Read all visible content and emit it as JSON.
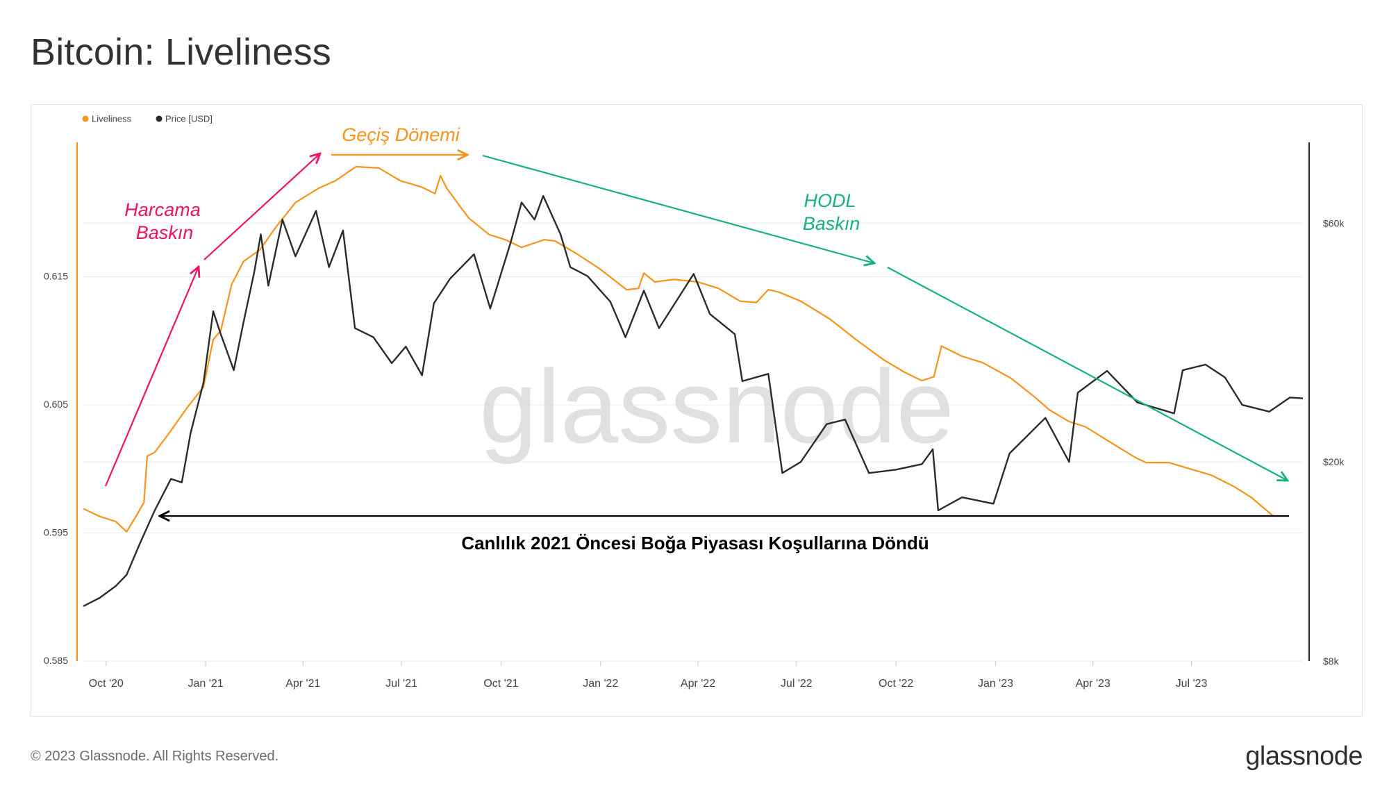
{
  "title": "Bitcoin: Liveliness",
  "footer": {
    "copyright": "© 2023 Glassnode. All Rights Reserved.",
    "logo_text": "glassnode"
  },
  "watermark": "glassnode",
  "colors": {
    "liveliness": "#f7931a",
    "price": "#2b2b2b",
    "spending": "#ee1166",
    "transition": "#f7931a",
    "hodl": "#15b37a",
    "note": "#000000"
  },
  "annotations": {
    "spending_dominance": [
      "Harcama",
      "Baskın"
    ],
    "transition_period": "Geçiş Dönemi",
    "hodl_dominance": [
      "HODL",
      "Baskın"
    ],
    "pre_2021_note": "Canlılık 2021 Öncesi Boğa Piyasası Koşullarına Döndü"
  },
  "chart_data": {
    "type": "line",
    "legend": {
      "position": "top-left",
      "entries": [
        "Liveliness",
        "Price [USD]"
      ]
    },
    "x_ticks": [
      "Oct '20",
      "Jan '21",
      "Apr '21",
      "Jul '21",
      "Oct '21",
      "Jan '22",
      "Apr '22",
      "Jul '22",
      "Oct '22",
      "Jan '23",
      "Apr '23",
      "Jul '23"
    ],
    "x_tick_dates": [
      "2020-10-01",
      "2021-01-01",
      "2021-04-01",
      "2021-07-01",
      "2021-10-01",
      "2022-01-01",
      "2022-04-01",
      "2022-07-01",
      "2022-10-01",
      "2023-01-01",
      "2023-04-01",
      "2023-07-01"
    ],
    "x_range": [
      "2020-09-10",
      "2023-10-12"
    ],
    "left_axis": {
      "ticks": [
        "0.615",
        "0.605",
        "0.595",
        "0.585"
      ],
      "range": [
        0.585,
        0.6255
      ]
    },
    "right_axis": {
      "scale": "log",
      "ticks": [
        "$60k",
        "$20k",
        "$8k"
      ],
      "tick_values": [
        60000,
        20000,
        8000
      ],
      "range": [
        8000,
        87000
      ]
    },
    "grid": true,
    "series": [
      {
        "name": "Liveliness",
        "axis": "left",
        "points": [
          [
            "2020-09-10",
            0.5969
          ],
          [
            "2020-09-25",
            0.5963
          ],
          [
            "2020-10-10",
            0.5959
          ],
          [
            "2020-10-20",
            0.5951
          ],
          [
            "2020-10-28",
            0.5962
          ],
          [
            "2020-11-05",
            0.5974
          ],
          [
            "2020-11-08",
            0.601
          ],
          [
            "2020-11-15",
            0.6013
          ],
          [
            "2020-11-30",
            0.603
          ],
          [
            "2020-12-15",
            0.6048
          ],
          [
            "2020-12-30",
            0.6064
          ],
          [
            "2021-01-08",
            0.6101
          ],
          [
            "2021-01-15",
            0.6108
          ],
          [
            "2021-01-25",
            0.6144
          ],
          [
            "2021-02-05",
            0.6162
          ],
          [
            "2021-02-20",
            0.6171
          ],
          [
            "2021-03-08",
            0.619
          ],
          [
            "2021-03-25",
            0.6208
          ],
          [
            "2021-04-15",
            0.6219
          ],
          [
            "2021-05-01",
            0.6225
          ],
          [
            "2021-05-20",
            0.6236
          ],
          [
            "2021-06-10",
            0.6235
          ],
          [
            "2021-06-30",
            0.6225
          ],
          [
            "2021-07-20",
            0.622
          ],
          [
            "2021-08-01",
            0.6215
          ],
          [
            "2021-08-06",
            0.6229
          ],
          [
            "2021-08-12",
            0.6219
          ],
          [
            "2021-09-01",
            0.6196
          ],
          [
            "2021-09-20",
            0.6183
          ],
          [
            "2021-10-05",
            0.6179
          ],
          [
            "2021-10-20",
            0.6173
          ],
          [
            "2021-11-10",
            0.6179
          ],
          [
            "2021-11-20",
            0.6178
          ],
          [
            "2021-12-10",
            0.6168
          ],
          [
            "2021-12-30",
            0.6157
          ],
          [
            "2022-01-25",
            0.614
          ],
          [
            "2022-02-05",
            0.6141
          ],
          [
            "2022-02-10",
            0.6153
          ],
          [
            "2022-02-20",
            0.6146
          ],
          [
            "2022-03-10",
            0.6148
          ],
          [
            "2022-04-01",
            0.6146
          ],
          [
            "2022-04-20",
            0.6141
          ],
          [
            "2022-05-10",
            0.6131
          ],
          [
            "2022-05-25",
            0.613
          ],
          [
            "2022-06-05",
            0.614
          ],
          [
            "2022-06-15",
            0.6138
          ],
          [
            "2022-07-05",
            0.6131
          ],
          [
            "2022-08-01",
            0.6117
          ],
          [
            "2022-08-25",
            0.6101
          ],
          [
            "2022-09-20",
            0.6085
          ],
          [
            "2022-10-10",
            0.6075
          ],
          [
            "2022-10-25",
            0.6069
          ],
          [
            "2022-11-05",
            0.6072
          ],
          [
            "2022-11-12",
            0.6096
          ],
          [
            "2022-12-01",
            0.6088
          ],
          [
            "2022-12-20",
            0.6083
          ],
          [
            "2023-01-15",
            0.6071
          ],
          [
            "2023-02-05",
            0.6057
          ],
          [
            "2023-02-20",
            0.6046
          ],
          [
            "2023-03-10",
            0.6037
          ],
          [
            "2023-03-25",
            0.6033
          ],
          [
            "2023-04-15",
            0.6022
          ],
          [
            "2023-05-10",
            0.6009
          ],
          [
            "2023-05-20",
            0.6005
          ],
          [
            "2023-06-10",
            0.6005
          ],
          [
            "2023-06-30",
            0.6
          ],
          [
            "2023-07-20",
            0.5995
          ],
          [
            "2023-08-10",
            0.5986
          ],
          [
            "2023-08-25",
            0.5978
          ],
          [
            "2023-09-15",
            0.5963
          ]
        ]
      },
      {
        "name": "Price [USD]",
        "axis": "right",
        "points": [
          [
            "2020-09-10",
            10300
          ],
          [
            "2020-09-25",
            10700
          ],
          [
            "2020-10-10",
            11300
          ],
          [
            "2020-10-20",
            11900
          ],
          [
            "2020-11-01",
            13700
          ],
          [
            "2020-11-15",
            16000
          ],
          [
            "2020-11-30",
            18500
          ],
          [
            "2020-12-10",
            18200
          ],
          [
            "2020-12-18",
            22800
          ],
          [
            "2020-12-30",
            28800
          ],
          [
            "2021-01-08",
            40000
          ],
          [
            "2021-01-15",
            36000
          ],
          [
            "2021-01-27",
            30500
          ],
          [
            "2021-02-05",
            38000
          ],
          [
            "2021-02-15",
            48000
          ],
          [
            "2021-02-21",
            57000
          ],
          [
            "2021-02-28",
            45000
          ],
          [
            "2021-03-13",
            61000
          ],
          [
            "2021-03-25",
            51500
          ],
          [
            "2021-04-13",
            63500
          ],
          [
            "2021-04-25",
            49000
          ],
          [
            "2021-05-08",
            58000
          ],
          [
            "2021-05-19",
            37000
          ],
          [
            "2021-06-05",
            35500
          ],
          [
            "2021-06-22",
            31500
          ],
          [
            "2021-07-05",
            34000
          ],
          [
            "2021-07-20",
            29800
          ],
          [
            "2021-07-31",
            41500
          ],
          [
            "2021-08-15",
            46500
          ],
          [
            "2021-09-06",
            52000
          ],
          [
            "2021-09-21",
            40500
          ],
          [
            "2021-10-10",
            55000
          ],
          [
            "2021-10-20",
            66000
          ],
          [
            "2021-11-01",
            61000
          ],
          [
            "2021-11-09",
            68000
          ],
          [
            "2021-11-25",
            57000
          ],
          [
            "2021-12-04",
            49000
          ],
          [
            "2021-12-20",
            47000
          ],
          [
            "2022-01-10",
            41800
          ],
          [
            "2022-01-24",
            35500
          ],
          [
            "2022-02-10",
            44000
          ],
          [
            "2022-02-24",
            37000
          ],
          [
            "2022-03-28",
            47500
          ],
          [
            "2022-04-12",
            39500
          ],
          [
            "2022-05-05",
            36000
          ],
          [
            "2022-05-12",
            29000
          ],
          [
            "2022-06-05",
            30000
          ],
          [
            "2022-06-18",
            19000
          ],
          [
            "2022-07-05",
            20000
          ],
          [
            "2022-07-29",
            23800
          ],
          [
            "2022-08-15",
            24300
          ],
          [
            "2022-09-06",
            19000
          ],
          [
            "2022-10-01",
            19300
          ],
          [
            "2022-10-25",
            19800
          ],
          [
            "2022-11-04",
            21200
          ],
          [
            "2022-11-09",
            16000
          ],
          [
            "2022-12-01",
            17000
          ],
          [
            "2022-12-30",
            16500
          ],
          [
            "2023-01-14",
            20800
          ],
          [
            "2023-02-16",
            24500
          ],
          [
            "2023-03-10",
            20000
          ],
          [
            "2023-03-18",
            27500
          ],
          [
            "2023-04-14",
            30400
          ],
          [
            "2023-05-12",
            26300
          ],
          [
            "2023-06-15",
            25000
          ],
          [
            "2023-06-23",
            30500
          ],
          [
            "2023-07-14",
            31300
          ],
          [
            "2023-08-01",
            29500
          ],
          [
            "2023-08-17",
            26000
          ],
          [
            "2023-09-11",
            25200
          ],
          [
            "2023-09-30",
            26900
          ],
          [
            "2023-10-12",
            26800
          ]
        ]
      }
    ]
  }
}
